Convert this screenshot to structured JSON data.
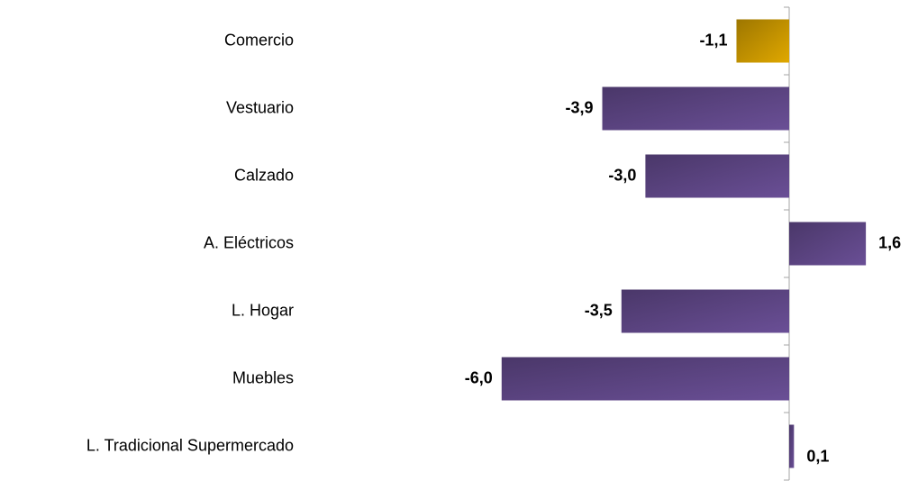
{
  "chart_data": {
    "type": "bar",
    "orientation": "horizontal",
    "categories": [
      "Comercio",
      "Vestuario",
      "Calzado",
      "A. Eléctricos",
      "L. Hogar",
      "Muebles",
      "L. Tradicional Supermercado"
    ],
    "values": [
      -1.1,
      -3.9,
      -3.0,
      1.6,
      -3.5,
      -6.0,
      0.1
    ],
    "value_labels": [
      "-1,1",
      "-3,9",
      "-3,0",
      "1,6",
      "-3,5",
      "-6,0",
      "0,1"
    ],
    "colors": [
      "#e0a800",
      "#6a4f96",
      "#6a4f96",
      "#6a4f96",
      "#6a4f96",
      "#6a4f96",
      "#6a4f96"
    ]
  }
}
